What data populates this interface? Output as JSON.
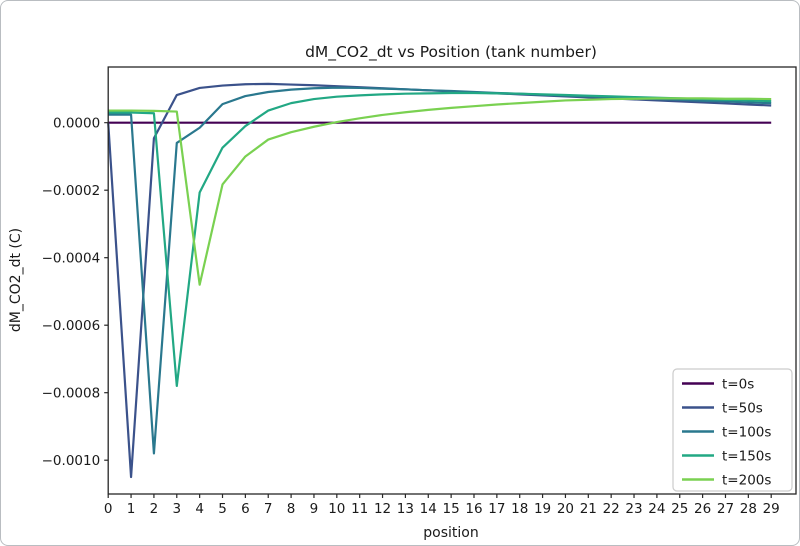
{
  "figure": {
    "title": "dM_CO2_dt vs Position (tank number)",
    "xlabel": "position",
    "ylabel": "dM_CO2_dt (C)",
    "background_color": "#ffffff",
    "spine_color": "#262626",
    "zero_line_color": "#440154"
  },
  "chart_data": {
    "type": "line",
    "title": "dM_CO2_dt vs Position (tank number)",
    "xlabel": "position",
    "ylabel": "dM_CO2_dt (C)",
    "grid": false,
    "legend_position": "lower right",
    "xlim": [
      0,
      30.1
    ],
    "ylim": [
      -0.0011,
      0.000159
    ],
    "x": [
      0,
      1,
      2,
      3,
      4,
      5,
      6,
      7,
      8,
      9,
      10,
      11,
      12,
      13,
      14,
      15,
      16,
      17,
      18,
      19,
      20,
      21,
      22,
      23,
      24,
      25,
      26,
      27,
      28,
      29
    ],
    "xtick_labels": [
      "0",
      "1",
      "2",
      "3",
      "4",
      "5",
      "6",
      "7",
      "8",
      "9",
      "10",
      "11",
      "12",
      "13",
      "14",
      "15",
      "16",
      "17",
      "18",
      "19",
      "20",
      "21",
      "22",
      "23",
      "24",
      "25",
      "26",
      "27",
      "28",
      "29"
    ],
    "yticks": [
      {
        "label": "0.0000",
        "value": 0.0
      },
      {
        "label": "−0.0002",
        "value": -0.0002
      },
      {
        "label": "−0.0004",
        "value": -0.0004
      },
      {
        "label": "−0.0006",
        "value": -0.0006
      },
      {
        "label": "−0.0008",
        "value": -0.0008
      },
      {
        "label": "−0.0010",
        "value": -0.001
      }
    ],
    "series": [
      {
        "name": "t=0s",
        "color": "#440154",
        "values": [
          0,
          0,
          0,
          0,
          0,
          0,
          0,
          0,
          0,
          0,
          0,
          0,
          0,
          0,
          0,
          0,
          0,
          0,
          0,
          0,
          0,
          0,
          0,
          0,
          0,
          0,
          0,
          0,
          0,
          0
        ]
      },
      {
        "name": "t=50s",
        "color": "#3b528b",
        "values": [
          0.0,
          -0.00105,
          -4.6e-05,
          8.2e-05,
          0.000103,
          0.00011,
          0.000114,
          0.000115,
          0.000113,
          0.000111,
          0.000108,
          0.000105,
          0.000102,
          9.9e-05,
          9.6e-05,
          9.3e-05,
          9e-05,
          8.7e-05,
          8.4e-05,
          8.1e-05,
          7.8e-05,
          7.5e-05,
          7.2e-05,
          6.9e-05,
          6.6e-05,
          6.3e-05,
          6e-05,
          5.7e-05,
          5.4e-05,
          5.1e-05
        ]
      },
      {
        "name": "t=100s",
        "color": "#2a788e",
        "values": [
          2.4e-05,
          2.4e-05,
          -0.00098,
          -6e-05,
          -1.5e-05,
          5.5e-05,
          7.9e-05,
          9.1e-05,
          9.8e-05,
          0.000102,
          0.000104,
          0.000103,
          0.000101,
          9.9e-05,
          9.6e-05,
          9.4e-05,
          9.1e-05,
          8.8e-05,
          8.6e-05,
          8.3e-05,
          8e-05,
          7.8e-05,
          7.5e-05,
          7.3e-05,
          7e-05,
          6.8e-05,
          6.5e-05,
          6.3e-05,
          6e-05,
          5.8e-05
        ]
      },
      {
        "name": "t=150s",
        "color": "#22a884",
        "values": [
          3e-05,
          3e-05,
          2.8e-05,
          -0.00078,
          -0.000207,
          -7.4e-05,
          -1e-05,
          3.6e-05,
          5.8e-05,
          7e-05,
          7.7e-05,
          8.1e-05,
          8.4e-05,
          8.6e-05,
          8.7e-05,
          8.8e-05,
          8.8e-05,
          8.7e-05,
          8.6e-05,
          8.4e-05,
          8.2e-05,
          8e-05,
          7.8e-05,
          7.6e-05,
          7.4e-05,
          7.2e-05,
          7e-05,
          6.8e-05,
          6.6e-05,
          6.4e-05
        ]
      },
      {
        "name": "t=200s",
        "color": "#7ad151",
        "values": [
          3.6e-05,
          3.6e-05,
          3.5e-05,
          3.3e-05,
          -0.00048,
          -0.000183,
          -0.0001,
          -5e-05,
          -2.8e-05,
          -1.2e-05,
          2e-06,
          1.3e-05,
          2.3e-05,
          3.1e-05,
          3.8e-05,
          4.4e-05,
          4.9e-05,
          5.4e-05,
          5.8e-05,
          6.2e-05,
          6.6e-05,
          6.8e-05,
          7e-05,
          7.1e-05,
          7.2e-05,
          7.2e-05,
          7.2e-05,
          7.1e-05,
          7.1e-05,
          7e-05
        ]
      }
    ],
    "legend": {
      "entries": [
        "t=0s",
        "t=50s",
        "t=100s",
        "t=150s",
        "t=200s"
      ],
      "frame_color": "#cccccc",
      "face_color": "#ffffff"
    }
  }
}
